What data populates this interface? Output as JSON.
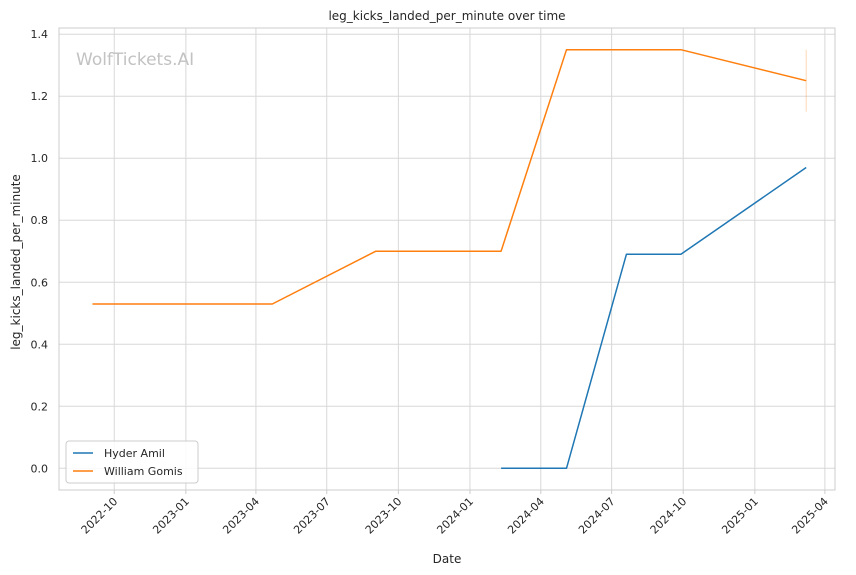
{
  "chart_data": {
    "type": "line",
    "title": "leg_kicks_landed_per_minute over time",
    "xlabel": "Date",
    "ylabel": "leg_kicks_landed_per_minute",
    "watermark": "WolfTickets.AI",
    "x_tick_labels": [
      "2022-10",
      "2023-01",
      "2023-04",
      "2023-07",
      "2023-10",
      "2024-01",
      "2024-04",
      "2024-07",
      "2024-10",
      "2025-01",
      "2025-04"
    ],
    "y_tick_labels": [
      "0.0",
      "0.2",
      "0.4",
      "0.6",
      "0.8",
      "1.0",
      "1.2",
      "1.4"
    ],
    "ylim": [
      -0.07,
      1.42
    ],
    "xlim": [
      "2022-07-22",
      "2025-04-14"
    ],
    "grid": true,
    "legend_position": "lower-left",
    "series": [
      {
        "name": "Hyder Amil",
        "color": "#1f77b4",
        "points": [
          {
            "x": "2024-02-10",
            "y": 0.0
          },
          {
            "x": "2024-05-04",
            "y": 0.0
          },
          {
            "x": "2024-07-20",
            "y": 0.69
          },
          {
            "x": "2024-09-28",
            "y": 0.69
          },
          {
            "x": "2025-03-08",
            "y": 0.97
          }
        ]
      },
      {
        "name": "William Gomis",
        "color": "#ff7f0e",
        "points": [
          {
            "x": "2022-09-03",
            "y": 0.53
          },
          {
            "x": "2023-04-22",
            "y": 0.53
          },
          {
            "x": "2023-09-02",
            "y": 0.7
          },
          {
            "x": "2024-02-10",
            "y": 0.7
          },
          {
            "x": "2024-05-04",
            "y": 1.35
          },
          {
            "x": "2024-09-28",
            "y": 1.35
          },
          {
            "x": "2025-03-08",
            "y": 1.25
          }
        ],
        "error_band": {
          "x": "2025-03-08",
          "low": 1.15,
          "high": 1.35
        }
      }
    ]
  }
}
